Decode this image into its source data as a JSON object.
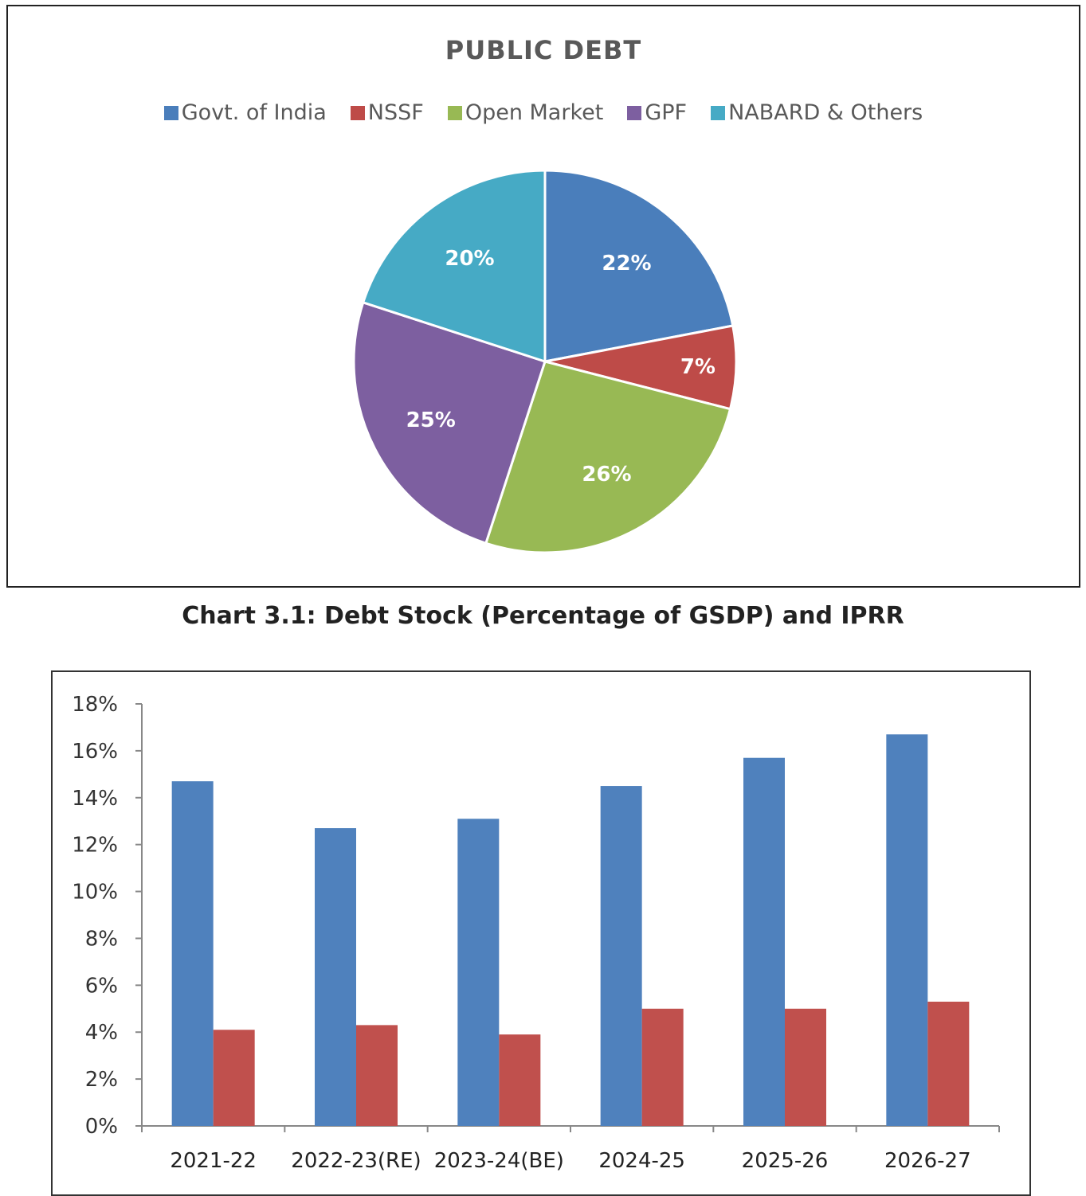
{
  "chart_data": [
    {
      "type": "pie",
      "title": "PUBLIC DEBT",
      "labels": [
        "Govt. of India",
        "NSSF",
        "Open Market",
        "GPF",
        "NABARD & Others"
      ],
      "values": [
        22,
        7,
        26,
        25,
        20
      ],
      "value_labels": [
        "22%",
        "7%",
        "26%",
        "25%",
        "20%"
      ],
      "colors": [
        "#4A7EBB",
        "#BE4B48",
        "#98B954",
        "#7D5FA0",
        "#46AAC5"
      ],
      "legend": "top"
    },
    {
      "type": "bar",
      "title": "Chart 3.1: Debt Stock (Percentage of GSDP) and IPRR",
      "categories": [
        "2021-22",
        "2022-23(RE)",
        "2023-24(BE)",
        "2024-25",
        "2025-26",
        "2026-27"
      ],
      "series": [
        {
          "name": "Debt Stock (Percentage of GSDP)",
          "color": "#4F81BD",
          "values": [
            14.7,
            12.7,
            13.1,
            14.5,
            15.7,
            16.7
          ]
        },
        {
          "name": "IPRR",
          "color": "#C0504D",
          "values": [
            4.1,
            4.3,
            3.9,
            5.0,
            5.0,
            5.3
          ]
        }
      ],
      "yticks": [
        "0%",
        "2%",
        "4%",
        "6%",
        "8%",
        "10%",
        "12%",
        "14%",
        "16%",
        "18%"
      ],
      "ylim": [
        0,
        18
      ],
      "xlabel": "",
      "ylabel": "",
      "grid": false
    }
  ]
}
